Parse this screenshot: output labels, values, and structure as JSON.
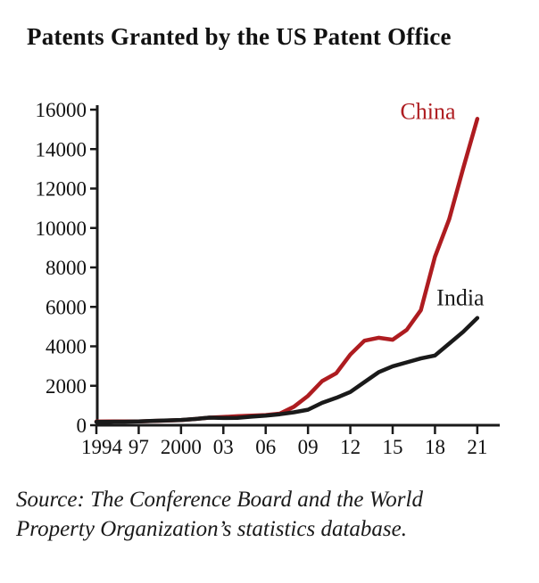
{
  "title": "Patents Granted by the US Patent Office",
  "source": {
    "line1": "Source: The Conference Board and the World",
    "line2": "Property Organization’s statistics database."
  },
  "colors": {
    "china_line": "#AE1C20",
    "india_line": "#1a1a1a",
    "axis": "#1a1a1a"
  },
  "chart_data": {
    "type": "line",
    "title": "Patents Granted by the US Patent Office",
    "xlabel": "",
    "ylabel": "",
    "xlim": [
      1994,
      2021
    ],
    "ylim": [
      0,
      16000
    ],
    "grid": false,
    "legend_position": "inline-annotations",
    "x": [
      1994,
      1995,
      1996,
      1997,
      1998,
      1999,
      2000,
      2001,
      2002,
      2003,
      2004,
      2005,
      2006,
      2007,
      2008,
      2009,
      2010,
      2011,
      2012,
      2013,
      2014,
      2015,
      2016,
      2017,
      2018,
      2019,
      2020,
      2021
    ],
    "series": [
      {
        "name": "China",
        "color": "#AE1C20",
        "values": [
          50,
          60,
          55,
          60,
          80,
          100,
          120,
          180,
          250,
          280,
          320,
          350,
          380,
          450,
          800,
          1350,
          2100,
          2500,
          3450,
          4150,
          4300,
          4200,
          4700,
          5700,
          8400,
          10300,
          12900,
          15400
        ]
      },
      {
        "name": "India",
        "color": "#1a1a1a",
        "values": [
          30,
          35,
          40,
          55,
          85,
          110,
          130,
          180,
          250,
          230,
          240,
          300,
          350,
          420,
          520,
          650,
          1000,
          1250,
          1550,
          2050,
          2550,
          2850,
          3050,
          3250,
          3400,
          4000,
          4600,
          5300
        ]
      }
    ],
    "yticks": [
      0,
      2000,
      4000,
      6000,
      8000,
      10000,
      12000,
      14000,
      16000
    ],
    "ytick_labels": [
      "0",
      "2000",
      "4000",
      "6000",
      "8000",
      "10000",
      "12000",
      "14000",
      "16000"
    ],
    "xtick_years": [
      1994,
      1997,
      2000,
      2003,
      2006,
      2009,
      2012,
      2015,
      2018,
      2021
    ],
    "xtick_labels": [
      "1994",
      "97",
      "2000",
      "03",
      "06",
      "09",
      "12",
      "15",
      "18",
      "21"
    ],
    "annotations": [
      {
        "text": "China",
        "year": 2017.5,
        "value": 15800,
        "color": "#AE1C20"
      },
      {
        "text": "India",
        "year": 2019.8,
        "value": 6350,
        "color": "#1a1a1a"
      }
    ]
  }
}
